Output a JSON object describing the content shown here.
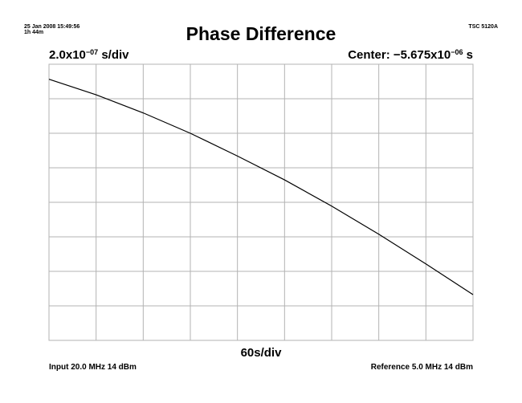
{
  "header": {
    "timestamp": "25 Jan 2008 15:49:56",
    "elapsed": "1h 44m",
    "instrument": "TSC 5120A"
  },
  "title": "Phase Difference",
  "scales": {
    "y_mantissa": "2.0x10",
    "y_exponent": "−07",
    "y_unit": " s/div",
    "center_prefix": "Center: −5.675x10",
    "center_exponent": "−06",
    "center_unit": " s",
    "x_label": "60s/div"
  },
  "footer": {
    "input": "Input 20.0 MHz 14 dBm",
    "reference": "Reference 5.0 MHz 14 dBm"
  },
  "colors": {
    "grid": "#b3b3b3",
    "trace": "#000000"
  },
  "chart_data": {
    "type": "line",
    "title": "Phase Difference",
    "xlabel": "60s/div",
    "ylabel": "2.0x10−07 s/div",
    "xlim": [
      0,
      540
    ],
    "ylim": [
      -6.475e-06,
      -4.875e-06
    ],
    "grid": true,
    "divisions": {
      "x": 9,
      "y": 8
    },
    "series": [
      {
        "x": [
          0,
          60,
          120,
          180,
          240,
          300,
          360,
          420,
          480,
          540
        ],
        "y": [
          -4.962e-06,
          -5.052e-06,
          -5.157e-06,
          -5.275e-06,
          -5.407e-06,
          -5.545e-06,
          -5.697e-06,
          -5.86e-06,
          -6.032e-06,
          -6.21e-06
        ]
      }
    ]
  }
}
